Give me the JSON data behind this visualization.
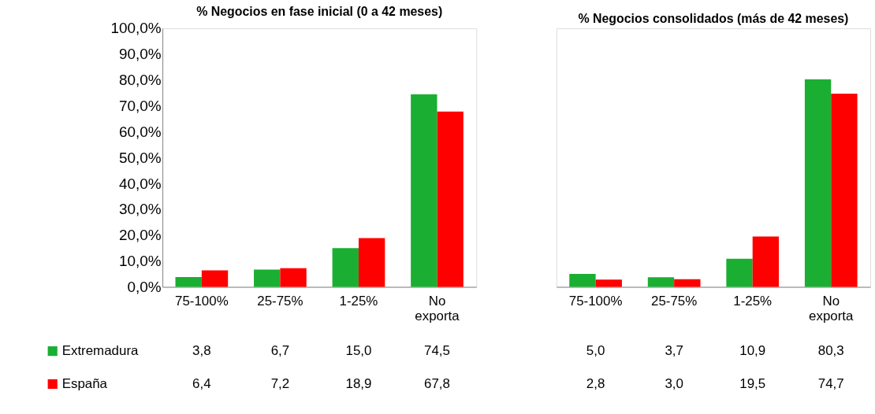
{
  "chart_data": [
    {
      "type": "bar",
      "title": "% Negocios en fase inicial (0 a 42 meses)",
      "categories": [
        "75-100%",
        "25-75%",
        "1-25%",
        "No exporta"
      ],
      "series": [
        {
          "name": "Extremadura",
          "color": "#1aaf32",
          "values": [
            3.8,
            6.7,
            15.0,
            74.5
          ],
          "value_labels": [
            "3,8",
            "6,7",
            "15,0",
            "74,5"
          ]
        },
        {
          "name": "España",
          "color": "#ff0000",
          "values": [
            6.4,
            7.2,
            18.9,
            67.8
          ],
          "value_labels": [
            "6,4",
            "7,2",
            "18,9",
            "67,8"
          ]
        }
      ],
      "ylim": [
        0,
        100
      ],
      "yticks": [
        {
          "value": 0,
          "label": "0,0%"
        },
        {
          "value": 10,
          "label": "10,0%"
        },
        {
          "value": 20,
          "label": "20,0%"
        },
        {
          "value": 30,
          "label": "30,0%"
        },
        {
          "value": 40,
          "label": "40,0%"
        },
        {
          "value": 50,
          "label": "50,0%"
        },
        {
          "value": 60,
          "label": "60,0%"
        },
        {
          "value": 70,
          "label": "70,0%"
        },
        {
          "value": 80,
          "label": "80,0%"
        },
        {
          "value": 90,
          "label": "90,0%"
        },
        {
          "value": 100,
          "label": "100,0%"
        }
      ],
      "legend": "bottom left",
      "grid": false
    },
    {
      "type": "bar",
      "title": "% Negocios consolidados (más de 42 meses)",
      "categories": [
        "75-100%",
        "25-75%",
        "1-25%",
        "No exporta"
      ],
      "series": [
        {
          "color": "#1aaf32",
          "values": [
            5.0,
            3.7,
            10.9,
            80.3
          ],
          "value_labels": [
            "5,0",
            "3,7",
            "10,9",
            "80,3"
          ]
        },
        {
          "color": "#ff0000",
          "values": [
            2.8,
            3.0,
            19.5,
            74.7
          ],
          "value_labels": [
            "2,8",
            "3,0",
            "19,5",
            "74,7"
          ]
        }
      ],
      "ylim": [
        0,
        100
      ],
      "tick_labels": "x",
      "grid": false
    }
  ]
}
